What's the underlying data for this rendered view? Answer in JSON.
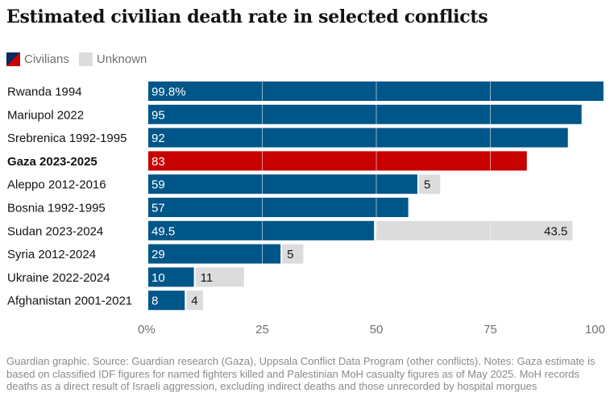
{
  "title": "Estimated civilian death rate in selected conflicts",
  "legend": {
    "civilians": "Civilians",
    "unknown": "Unknown"
  },
  "colors": {
    "civilians": "#005689",
    "highlight": "#c70000",
    "unknown": "#dcdcdc",
    "axis_text": "#707070",
    "label_text": "#121212"
  },
  "chart_data": {
    "type": "bar",
    "orientation": "horizontal",
    "stacked": true,
    "categories": [
      "Rwanda 1994",
      "Mariupol 2022",
      "Srebrenica 1992-1995",
      "Gaza 2023-2025",
      "Aleppo 2012-2016",
      "Bosnia 1992-1995",
      "Sudan 2023-2024",
      "Syria 2012-2024",
      "Ukraine 2022-2024",
      "Afghanistan 2001-2021"
    ],
    "highlight_category": "Gaza 2023-2025",
    "series": [
      {
        "name": "Civilians",
        "values": [
          99.8,
          95,
          92,
          83,
          59,
          57,
          49.5,
          29,
          10,
          8
        ],
        "labels": [
          "99.8%",
          "95",
          "92",
          "83",
          "59",
          "57",
          "49.5",
          "29",
          "10",
          "8"
        ]
      },
      {
        "name": "Unknown",
        "values": [
          0,
          0,
          0,
          0,
          5,
          0,
          43.5,
          5,
          11,
          4
        ],
        "labels": [
          "",
          "",
          "",
          "",
          "5",
          "",
          "43.5",
          "5",
          "11",
          "4"
        ]
      }
    ],
    "xlim": [
      0,
      100
    ],
    "xticks": [
      0,
      25,
      50,
      75,
      100
    ],
    "xtick_labels": [
      "0%",
      "25",
      "50",
      "75",
      "100"
    ],
    "grid": true,
    "legend_position": "top-left"
  },
  "footnote": "Guardian graphic. Source: Guardian research (Gaza), Uppsala Conflict Data Program (other conflicts). Notes: Gaza estimate is based on classified IDF figures for named fighters killed and Palestinian MoH casualty figures as of May 2025. MoH records deaths as a direct result of Israeli aggression, excluding indirect deaths and those unrecorded by hospital morgues"
}
